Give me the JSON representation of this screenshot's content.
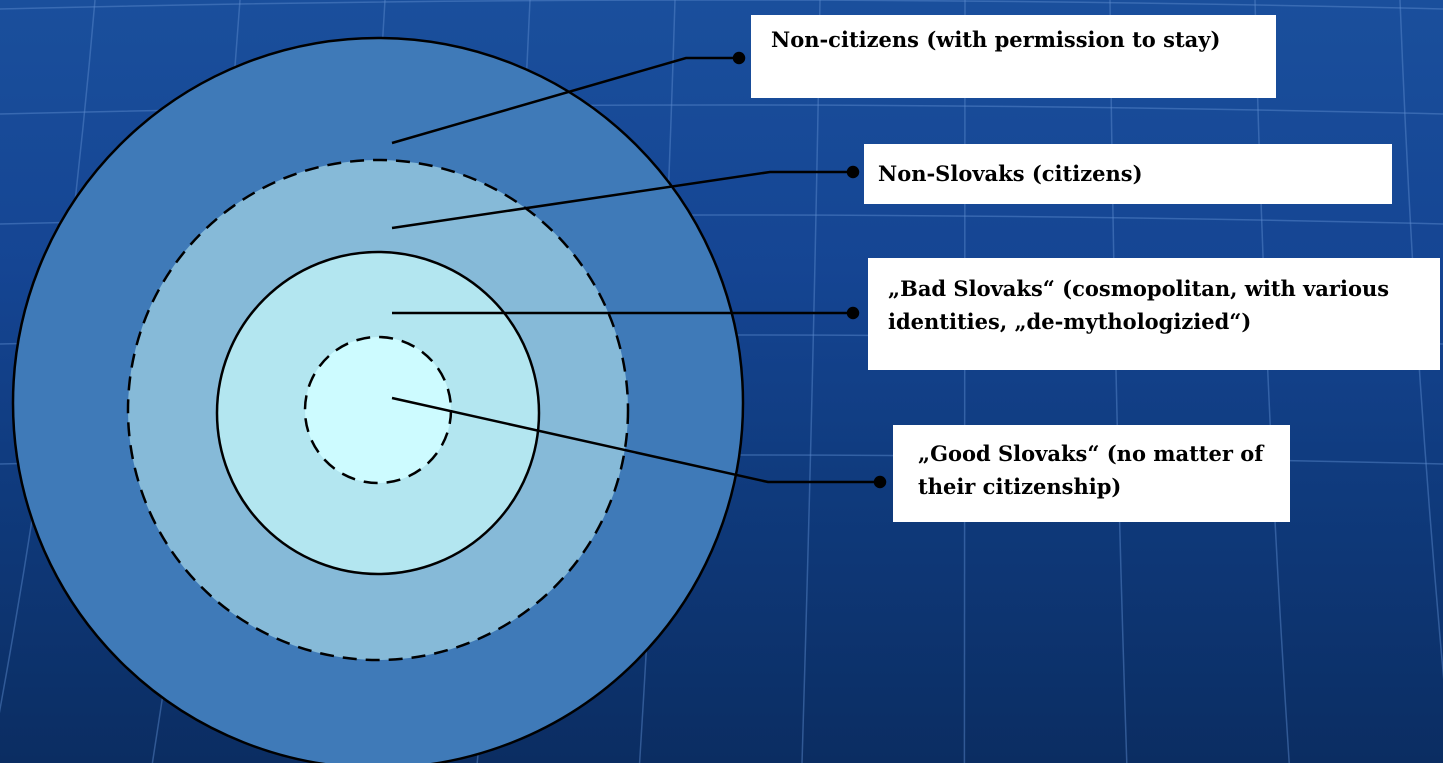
{
  "colors": {
    "background_top": "#1a4f9c",
    "background_bottom": "#0b2d62",
    "grid_line": "#5f8fd0",
    "ring_outer": "#3f7ab8",
    "ring_second": "#86bad8",
    "ring_third": "#b3e6f0",
    "core": "#cdfbff",
    "outline": "#000000",
    "label_background": "#ffffff"
  },
  "labels": {
    "non_citizens": "Non-citizens (with permission to stay)",
    "non_slovaks": "Non-Slovaks (citizens)",
    "bad_slovaks": "„Bad Slovaks“ (cosmopolitan, with various identities, „de-mythologizied“)",
    "good_slovaks": "„Good Slovaks“ (no matter of their citizenship)"
  }
}
